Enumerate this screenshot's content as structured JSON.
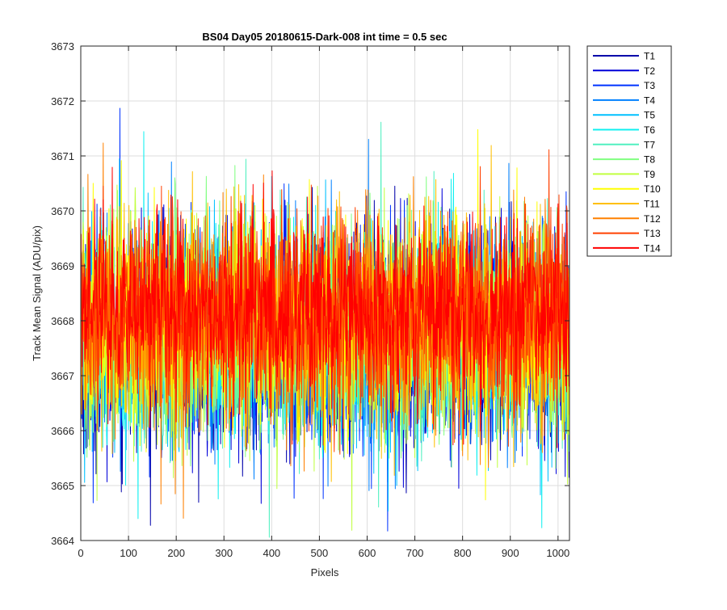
{
  "chart_data": {
    "type": "line",
    "title": "BS04 Day05 20180615-Dark-008 int time = 0.5 sec",
    "xlabel": "Pixels",
    "ylabel": "Track Mean Signal (ADU/pix)",
    "xlim": [
      0,
      1024
    ],
    "ylim": [
      3664,
      3673
    ],
    "xticks": [
      0,
      100,
      200,
      300,
      400,
      500,
      600,
      700,
      800,
      900,
      1000
    ],
    "yticks": [
      3664,
      3665,
      3666,
      3667,
      3668,
      3669,
      3670,
      3671,
      3672,
      3673
    ],
    "grid": true,
    "legend_position": "outside-top-right",
    "series": [
      {
        "name": "T1",
        "color": "#0000aa",
        "mean": 3667.6,
        "spread": 0.95,
        "values": []
      },
      {
        "name": "T2",
        "color": "#0000d9",
        "mean": 3667.6,
        "spread": 0.95,
        "values": []
      },
      {
        "name": "T3",
        "color": "#0033ff",
        "mean": 3667.65,
        "spread": 0.95,
        "values": []
      },
      {
        "name": "T4",
        "color": "#0080ff",
        "mean": 3667.7,
        "spread": 0.95,
        "values": []
      },
      {
        "name": "T5",
        "color": "#00c0ff",
        "mean": 3667.7,
        "spread": 0.95,
        "values": []
      },
      {
        "name": "T6",
        "color": "#10f0f0",
        "mean": 3667.75,
        "spread": 0.95,
        "values": []
      },
      {
        "name": "T7",
        "color": "#50f0c0",
        "mean": 3667.75,
        "spread": 0.95,
        "values": []
      },
      {
        "name": "T8",
        "color": "#80ff80",
        "mean": 3667.8,
        "spread": 0.95,
        "values": []
      },
      {
        "name": "T9",
        "color": "#c0ff40",
        "mean": 3667.85,
        "spread": 0.95,
        "values": []
      },
      {
        "name": "T10",
        "color": "#ffff00",
        "mean": 3667.95,
        "spread": 0.95,
        "values": []
      },
      {
        "name": "T11",
        "color": "#ffbf00",
        "mean": 3668.0,
        "spread": 0.95,
        "values": []
      },
      {
        "name": "T12",
        "color": "#ff8000",
        "mean": 3668.05,
        "spread": 0.95,
        "values": []
      },
      {
        "name": "T13",
        "color": "#ff4000",
        "mean": 3668.1,
        "spread": 0.9,
        "values": []
      },
      {
        "name": "T14",
        "color": "#ff0000",
        "mean": 3668.2,
        "spread": 0.85,
        "values": []
      }
    ]
  }
}
